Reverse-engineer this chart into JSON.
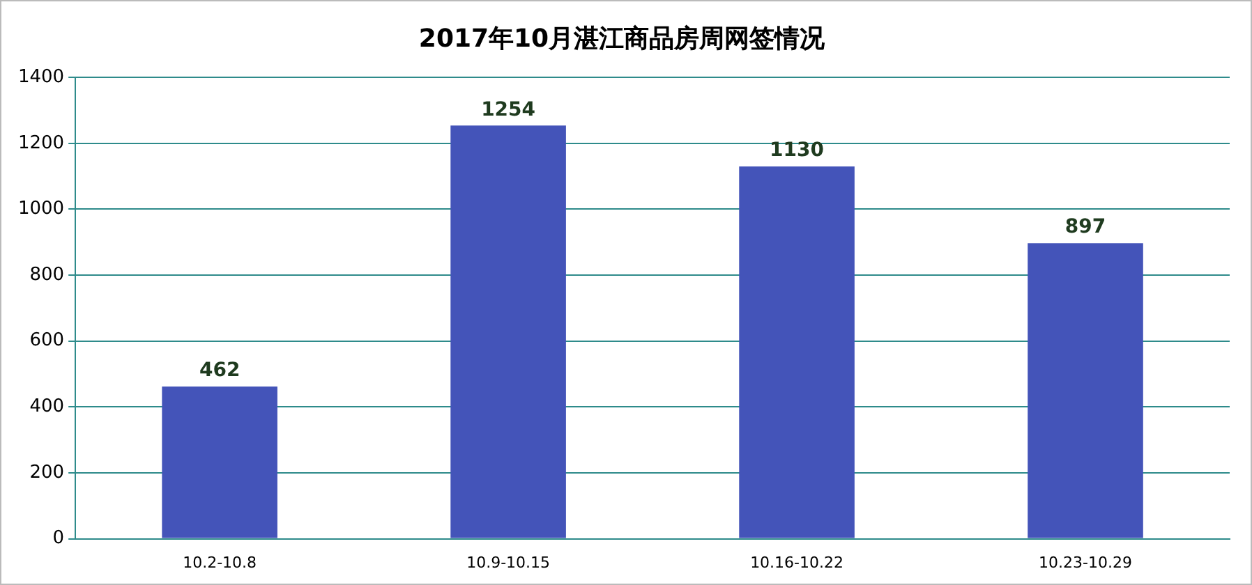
{
  "chart_data": {
    "type": "bar",
    "title": "2017年10月湛江商品房周网签情况",
    "categories": [
      "10.2-10.8",
      "10.9-10.15",
      "10.16-10.22",
      "10.23-10.29"
    ],
    "values": [
      462,
      1254,
      1130,
      897
    ],
    "color": "#4454b9",
    "ylim": [
      0,
      1400
    ],
    "yticks": [
      0,
      200,
      400,
      600,
      800,
      1000,
      1200,
      1400
    ],
    "grid": "y",
    "data_labels": true,
    "legend": false
  }
}
